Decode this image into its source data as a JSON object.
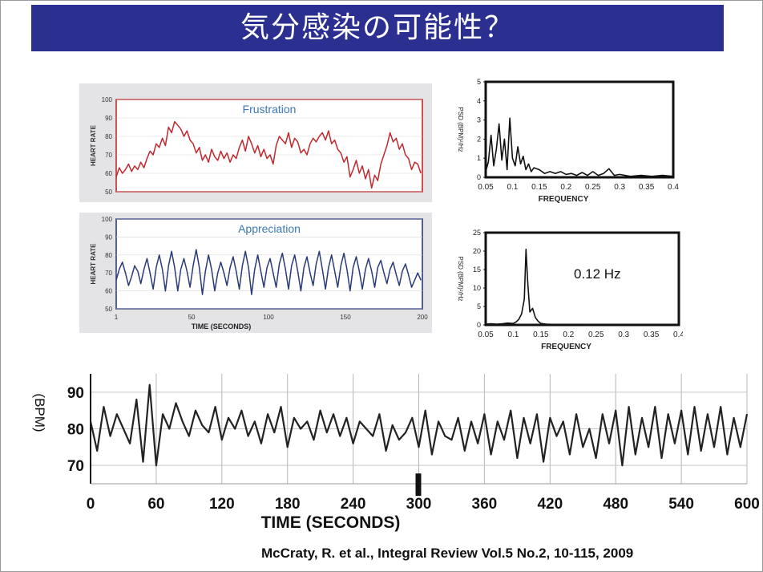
{
  "slide": {
    "title": "気分感染の可能性？",
    "citation": "McCraty, R. et al., Integral Review  Vol.5 No.2, 10-115, 2009"
  },
  "colors": {
    "title_bg": "#2b2f8f",
    "frustration": "#c0282e",
    "appreciation": "#2a3a78",
    "panel_bg": "#e4e4e6",
    "black": "#111111"
  },
  "chart_data": [
    {
      "id": "frustration",
      "type": "line",
      "title": "Frustration",
      "ylabel": "HEART RATE",
      "xlabel": "",
      "ylim": [
        50,
        100
      ],
      "yticks": [
        50,
        60,
        70,
        80,
        90,
        100
      ],
      "xlim": [
        1,
        200
      ],
      "xticks": [],
      "series": [
        {
          "x": [
            1,
            3,
            5,
            7,
            9,
            11,
            13,
            15,
            17,
            19,
            21,
            23,
            25,
            27,
            29,
            31,
            33,
            35,
            37,
            39,
            41,
            43,
            45,
            47,
            49,
            51,
            53,
            55,
            57,
            59,
            61,
            63,
            65,
            67,
            69,
            71,
            73,
            75,
            77,
            79,
            81,
            83,
            85,
            87,
            89,
            91,
            93,
            95,
            97,
            99,
            101,
            103,
            105,
            107,
            109,
            111,
            113,
            115,
            117,
            119,
            121,
            123,
            125,
            127,
            129,
            131,
            133,
            135,
            137,
            139,
            141,
            143,
            145,
            147,
            149,
            151,
            153,
            155,
            157,
            159,
            161,
            163,
            165,
            167,
            169,
            171,
            173,
            175,
            177,
            179,
            181,
            183,
            185,
            187,
            189,
            191,
            193,
            195,
            197,
            199
          ],
          "y": [
            58,
            63,
            60,
            62,
            65,
            61,
            64,
            62,
            66,
            63,
            68,
            72,
            70,
            76,
            74,
            79,
            75,
            85,
            82,
            88,
            86,
            84,
            80,
            83,
            78,
            76,
            71,
            74,
            67,
            70,
            66,
            73,
            69,
            67,
            72,
            68,
            71,
            66,
            70,
            68,
            74,
            78,
            72,
            80,
            76,
            71,
            75,
            69,
            73,
            68,
            70,
            65,
            75,
            80,
            78,
            76,
            82,
            74,
            79,
            77,
            71,
            73,
            70,
            76,
            79,
            77,
            80,
            82,
            78,
            83,
            76,
            78,
            73,
            71,
            66,
            69,
            58,
            62,
            67,
            60,
            64,
            57,
            62,
            52,
            59,
            56,
            65,
            70,
            75,
            82,
            77,
            79,
            73,
            76,
            70,
            68,
            62,
            66,
            65,
            60
          ]
        }
      ]
    },
    {
      "id": "appreciation",
      "type": "line",
      "title": "Appreciation",
      "ylabel": "HEART RATE",
      "xlabel": "TIME (SECONDS)",
      "ylim": [
        50,
        100
      ],
      "yticks": [
        50,
        60,
        70,
        80,
        90,
        100
      ],
      "xlim": [
        1,
        200
      ],
      "xticks": [
        1,
        50,
        100,
        150,
        200
      ],
      "series": [
        {
          "x": [
            1,
            3,
            5,
            7,
            9,
            11,
            13,
            15,
            17,
            19,
            21,
            23,
            25,
            27,
            29,
            31,
            33,
            35,
            37,
            39,
            41,
            43,
            45,
            47,
            49,
            51,
            53,
            55,
            57,
            59,
            61,
            63,
            65,
            67,
            69,
            71,
            73,
            75,
            77,
            79,
            81,
            83,
            85,
            87,
            89,
            91,
            93,
            95,
            97,
            99,
            101,
            103,
            105,
            107,
            109,
            111,
            113,
            115,
            117,
            119,
            121,
            123,
            125,
            127,
            129,
            131,
            133,
            135,
            137,
            139,
            141,
            143,
            145,
            147,
            149,
            151,
            153,
            155,
            157,
            159,
            161,
            163,
            165,
            167,
            169,
            171,
            173,
            175,
            177,
            179,
            181,
            183,
            185,
            187,
            189,
            191,
            193,
            195,
            197,
            199
          ],
          "y": [
            66,
            72,
            76,
            70,
            63,
            68,
            74,
            71,
            64,
            72,
            78,
            70,
            61,
            73,
            80,
            72,
            60,
            74,
            82,
            73,
            60,
            72,
            78,
            71,
            62,
            74,
            83,
            73,
            58,
            71,
            80,
            72,
            60,
            70,
            76,
            70,
            63,
            73,
            79,
            71,
            61,
            74,
            82,
            73,
            58,
            72,
            80,
            71,
            62,
            73,
            78,
            70,
            62,
            75,
            81,
            72,
            61,
            74,
            80,
            71,
            60,
            73,
            79,
            70,
            63,
            75,
            82,
            72,
            61,
            73,
            80,
            71,
            62,
            74,
            81,
            72,
            60,
            73,
            79,
            71,
            61,
            72,
            78,
            71,
            62,
            73,
            77,
            70,
            64,
            72,
            76,
            69,
            63,
            71,
            75,
            69,
            62,
            66,
            70,
            66
          ]
        }
      ]
    },
    {
      "id": "psd-frustration",
      "type": "line",
      "title": "",
      "ylabel": "PSD (BPM)²/Hz",
      "xlabel": "FREQUENCY",
      "ylim": [
        0,
        5
      ],
      "yticks": [
        0,
        1,
        2,
        3,
        4,
        5
      ],
      "xlim": [
        0.05,
        0.4
      ],
      "xticks": [
        "0.05",
        "0.1",
        "0.15",
        "0.2",
        "0.25",
        "0.3",
        "0.35",
        "0.4"
      ],
      "series": [
        {
          "x": [
            0.05,
            0.055,
            0.06,
            0.065,
            0.07,
            0.075,
            0.08,
            0.085,
            0.09,
            0.095,
            0.1,
            0.105,
            0.11,
            0.115,
            0.12,
            0.125,
            0.13,
            0.135,
            0.14,
            0.15,
            0.16,
            0.17,
            0.18,
            0.19,
            0.2,
            0.21,
            0.22,
            0.23,
            0.24,
            0.25,
            0.26,
            0.27,
            0.28,
            0.29,
            0.3,
            0.32,
            0.34,
            0.36,
            0.38,
            0.4
          ],
          "y": [
            0.3,
            0.8,
            2.2,
            0.6,
            1.5,
            2.8,
            0.9,
            2.0,
            0.4,
            3.1,
            1.0,
            0.6,
            1.6,
            0.7,
            1.1,
            0.4,
            0.7,
            0.3,
            0.5,
            0.4,
            0.2,
            0.3,
            0.2,
            0.3,
            0.15,
            0.2,
            0.1,
            0.25,
            0.1,
            0.3,
            0.1,
            0.2,
            0.45,
            0.1,
            0.15,
            0.05,
            0.1,
            0.05,
            0.1,
            0.05
          ]
        }
      ]
    },
    {
      "id": "psd-appreciation",
      "type": "line",
      "title": "",
      "ylabel": "PSD (BPM)²/Hz",
      "xlabel": "FREQUENCY",
      "annotation": "0.12 Hz",
      "ylim": [
        0,
        25
      ],
      "yticks": [
        0,
        5,
        10,
        15,
        20,
        25
      ],
      "xlim": [
        0.05,
        0.4
      ],
      "xticks": [
        "0.05",
        "0.1",
        "0.15",
        "0.2",
        "0.25",
        "0.3",
        "0.35",
        "0.4"
      ],
      "series": [
        {
          "x": [
            0.05,
            0.06,
            0.07,
            0.08,
            0.09,
            0.1,
            0.105,
            0.11,
            0.115,
            0.12,
            0.123,
            0.126,
            0.13,
            0.135,
            0.14,
            0.145,
            0.15,
            0.16,
            0.18,
            0.2,
            0.25,
            0.3,
            0.35,
            0.4
          ],
          "y": [
            0.2,
            0.3,
            0.2,
            0.3,
            0.5,
            0.4,
            0.8,
            1.5,
            3.0,
            7.0,
            20.5,
            12.0,
            3.5,
            4.5,
            2.0,
            1.0,
            0.4,
            0.2,
            0.1,
            0.1,
            0.05,
            0.05,
            0.05,
            0.05
          ]
        }
      ]
    },
    {
      "id": "heart-rate-600s",
      "type": "line",
      "title": "",
      "ylabel": "(BPM)",
      "xlabel": "TIME (SECONDS)",
      "ylim": [
        65,
        95
      ],
      "yticks": [
        70,
        80,
        90
      ],
      "xlim": [
        0,
        600
      ],
      "xticks": [
        0,
        60,
        120,
        180,
        240,
        300,
        360,
        420,
        480,
        540,
        600
      ],
      "marker_at": 300,
      "series": [
        {
          "x": [
            0,
            6,
            12,
            18,
            24,
            30,
            36,
            42,
            48,
            54,
            60,
            66,
            72,
            78,
            84,
            90,
            96,
            102,
            108,
            114,
            120,
            126,
            132,
            138,
            144,
            150,
            156,
            162,
            168,
            174,
            180,
            186,
            192,
            198,
            204,
            210,
            216,
            222,
            228,
            234,
            240,
            246,
            252,
            258,
            264,
            270,
            276,
            282,
            288,
            294,
            300,
            306,
            312,
            318,
            324,
            330,
            336,
            342,
            348,
            354,
            360,
            366,
            372,
            378,
            384,
            390,
            396,
            402,
            408,
            414,
            420,
            426,
            432,
            438,
            444,
            450,
            456,
            462,
            468,
            474,
            480,
            486,
            492,
            498,
            504,
            510,
            516,
            522,
            528,
            534,
            540,
            546,
            552,
            558,
            564,
            570,
            576,
            582,
            588,
            594,
            600
          ],
          "y": [
            82,
            74,
            86,
            78,
            84,
            80,
            76,
            88,
            71,
            92,
            70,
            84,
            80,
            87,
            82,
            78,
            85,
            81,
            79,
            86,
            77,
            83,
            80,
            85,
            78,
            82,
            76,
            84,
            79,
            86,
            75,
            83,
            80,
            82,
            77,
            85,
            79,
            84,
            78,
            83,
            76,
            82,
            80,
            78,
            84,
            74,
            81,
            77,
            79,
            83,
            75,
            85,
            73,
            82,
            78,
            77,
            83,
            74,
            82,
            76,
            84,
            73,
            82,
            77,
            85,
            72,
            83,
            76,
            84,
            71,
            83,
            78,
            82,
            73,
            84,
            75,
            80,
            72,
            84,
            76,
            85,
            70,
            86,
            73,
            83,
            75,
            86,
            72,
            84,
            76,
            85,
            73,
            86,
            74,
            84,
            75,
            86,
            73,
            83,
            75,
            84
          ]
        }
      ]
    }
  ]
}
